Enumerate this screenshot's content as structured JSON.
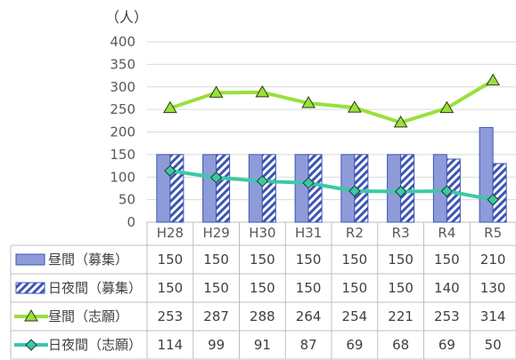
{
  "chart_data": {
    "type": "bar",
    "unit_label": "（人）",
    "categories": [
      "H28",
      "H29",
      "H30",
      "H31",
      "R2",
      "R3",
      "R4",
      "R5"
    ],
    "ylim": [
      0,
      400
    ],
    "yticks": [
      0,
      50,
      100,
      150,
      200,
      250,
      300,
      350,
      400
    ],
    "grid": true,
    "series": [
      {
        "name": "昼間（募集）",
        "kind": "bar",
        "style": "solid",
        "color": "#8e9bd9",
        "values": [
          150,
          150,
          150,
          150,
          150,
          150,
          150,
          210
        ]
      },
      {
        "name": "日夜間（募集）",
        "kind": "bar",
        "style": "hatched",
        "color": "#3d55b4",
        "values": [
          150,
          150,
          150,
          150,
          150,
          150,
          140,
          130
        ]
      },
      {
        "name": "昼間（志願）",
        "kind": "line",
        "marker": "triangle",
        "color": "#99e03c",
        "values": [
          253,
          287,
          288,
          264,
          254,
          221,
          253,
          314
        ]
      },
      {
        "name": "日夜間（志願）",
        "kind": "line",
        "marker": "diamond",
        "color": "#3cc9a5",
        "values": [
          114,
          99,
          91,
          87,
          69,
          68,
          69,
          50
        ]
      }
    ]
  }
}
